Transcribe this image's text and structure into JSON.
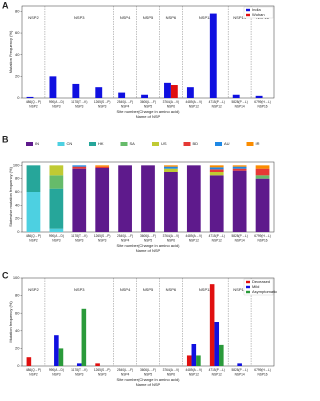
{
  "chart_data": [
    {
      "type": "bar",
      "panel": "A",
      "ylabel": "Mutation Frequency (%)",
      "xlabel": "Site number(Change in amino acid)",
      "xlabel2": "Name of NSP",
      "categories": [
        "486(Q→P)",
        "990(A→D)",
        "1178(T→K)",
        "1265(S→P)",
        "2540(L→F)",
        "3606(L→F)",
        "3764(A→V)",
        "4489(A→V)",
        "4715(P→L)",
        "5828(P→L)",
        "6799(H→L)"
      ],
      "nsp": [
        "NSP2",
        "NSP3",
        "NSP3",
        "NSP3",
        "NSP4",
        "NSP5",
        "NSP6",
        "NSP12",
        "NSP12",
        "NSP14",
        "NSP16"
      ],
      "series": [
        {
          "name": "India",
          "color": "#1010e0",
          "values": [
            1,
            20,
            13,
            10,
            5,
            3,
            14,
            10,
            78,
            3,
            2
          ]
        },
        {
          "name": "Wuhan",
          "color": "#e01010",
          "values": [
            0,
            0,
            0,
            0,
            0,
            0,
            12,
            0,
            0,
            0,
            0
          ]
        }
      ],
      "ylim": [
        0,
        85
      ],
      "yticks": [
        0,
        20,
        40,
        60,
        80
      ],
      "legend": "top-right"
    },
    {
      "type": "stacked_bar",
      "panel": "B",
      "ylabel": "Statewise mutation frequency (%)",
      "xlabel": "Site number(Change in amino acid)",
      "xlabel2": "Name of NSP",
      "categories": [
        "486(Q→P)",
        "990(A→D)",
        "1178(T→K)",
        "1265(S→P)",
        "2540(L→F)",
        "3606(L→F)",
        "3764(A→V)",
        "4489(A→V)",
        "4715(P→L)",
        "5828(P→L)",
        "6799(H→L)"
      ],
      "nsp": [
        "NSP2",
        "NSP3",
        "NSP3",
        "NSP3",
        "NSP4",
        "NSP5",
        "NSP6",
        "NSP12",
        "NSP12",
        "NSP14",
        "NSP16"
      ],
      "series": [
        {
          "name": "IN",
          "color": "#5e1a8c",
          "values": [
            0,
            0,
            95,
            96,
            100,
            100,
            90,
            100,
            85,
            92,
            80
          ]
        },
        {
          "name": "CN",
          "color": "#4dd0e1",
          "values": [
            60,
            5,
            0,
            0,
            0,
            0,
            0,
            0,
            0,
            0,
            0
          ]
        },
        {
          "name": "HK",
          "color": "#26a69a",
          "values": [
            40,
            60,
            0,
            0,
            0,
            0,
            0,
            0,
            0,
            0,
            0
          ]
        },
        {
          "name": "SA",
          "color": "#66bb6a",
          "values": [
            0,
            20,
            0,
            0,
            0,
            0,
            0,
            0,
            0,
            0,
            5
          ]
        },
        {
          "name": "US",
          "color": "#c0ca33",
          "values": [
            0,
            15,
            0,
            0,
            0,
            0,
            5,
            0,
            5,
            0,
            0
          ]
        },
        {
          "name": "BD",
          "color": "#e53935",
          "values": [
            0,
            0,
            3,
            2,
            0,
            0,
            0,
            0,
            4,
            3,
            10
          ]
        },
        {
          "name": "AU",
          "color": "#1e88e5",
          "values": [
            0,
            0,
            2,
            0,
            0,
            0,
            3,
            0,
            3,
            3,
            0
          ]
        },
        {
          "name": "IR",
          "color": "#fb8c00",
          "values": [
            0,
            0,
            0,
            2,
            0,
            0,
            2,
            0,
            3,
            2,
            5
          ]
        }
      ],
      "ylim": [
        0,
        105
      ],
      "yticks": [
        0,
        20,
        40,
        60,
        80,
        100
      ],
      "legend": "top"
    },
    {
      "type": "bar",
      "panel": "C",
      "ylabel": "Mutation frequency (%)",
      "xlabel": "Site number(Change in amino acid)",
      "xlabel2": "Name of NSP",
      "categories": [
        "486(Q→P)",
        "990(A→D)",
        "1178(T→K)",
        "1265(S→P)",
        "2540(L→F)",
        "3606(L→F)",
        "3764(A→V)",
        "4489(A→V)",
        "4715(P→L)",
        "5828(P→L)",
        "6799(H→L)"
      ],
      "nsp": [
        "NSP2",
        "NSP3",
        "NSP3",
        "NSP3",
        "NSP4",
        "NSP5",
        "NSP6",
        "NSP12",
        "NSP12",
        "NSP14",
        "NSP16"
      ],
      "series": [
        {
          "name": "Deceased",
          "color": "#e01010",
          "values": [
            10,
            0,
            0,
            3,
            0,
            0,
            0,
            12,
            93,
            0,
            0
          ]
        },
        {
          "name": "Mild",
          "color": "#1010e0",
          "values": [
            0,
            35,
            3,
            0,
            0,
            0,
            0,
            25,
            50,
            3,
            0
          ]
        },
        {
          "name": "Asymptomatic",
          "color": "#2a9a3a",
          "values": [
            0,
            20,
            65,
            0,
            0,
            0,
            0,
            12,
            24,
            0,
            0
          ]
        }
      ],
      "ylim": [
        0,
        100
      ],
      "yticks": [
        0,
        20,
        40,
        60,
        80,
        100
      ],
      "legend": "top-right"
    }
  ]
}
